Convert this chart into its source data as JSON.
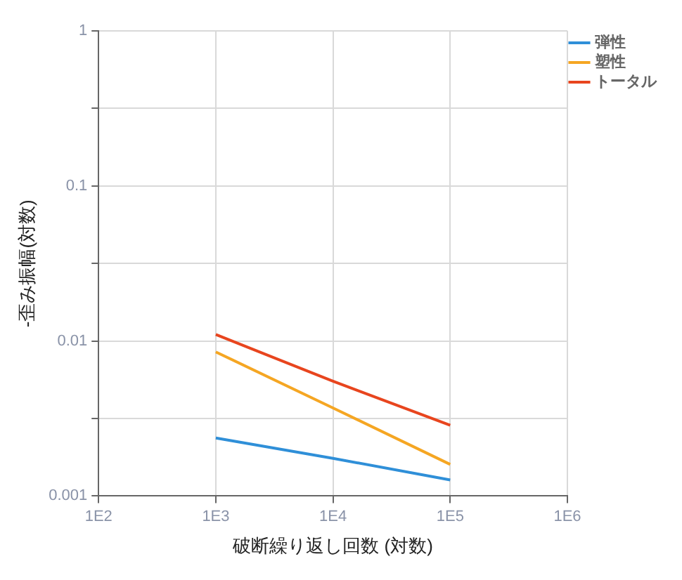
{
  "chart_data": {
    "type": "line",
    "xlabel": "破断繰り返し回数 (対数)",
    "ylabel": "-歪み振幅(対数)",
    "x": [
      1000,
      10000,
      100000
    ],
    "series": [
      {
        "name": "弾性",
        "color": "#2f8fd8",
        "values": [
          0.00237,
          0.00175,
          0.00127
        ]
      },
      {
        "name": "塑性",
        "color": "#f5a623",
        "values": [
          0.0085,
          0.0037,
          0.0016
        ]
      },
      {
        "name": "トータル",
        "color": "#e8451e",
        "values": [
          0.011,
          0.0055,
          0.00286
        ]
      }
    ],
    "log": "xy",
    "xlim": [
      100,
      1000000
    ],
    "ylim": [
      0.001,
      1
    ],
    "xticks": [
      {
        "value": 100,
        "label": "1E2"
      },
      {
        "value": 1000,
        "label": "1E3"
      },
      {
        "value": 10000,
        "label": "1E4"
      },
      {
        "value": 100000,
        "label": "1E5"
      },
      {
        "value": 1000000,
        "label": "1E6"
      }
    ],
    "yticks": [
      0.001,
      {
        "value": 0.00316,
        "label": null
      },
      0.01,
      {
        "value": 0.0316,
        "label": null
      },
      0.1,
      {
        "value": 0.316,
        "label": null
      },
      1
    ],
    "grid": true,
    "legend": "top right",
    "marker": "none",
    "line_style": "solid"
  }
}
